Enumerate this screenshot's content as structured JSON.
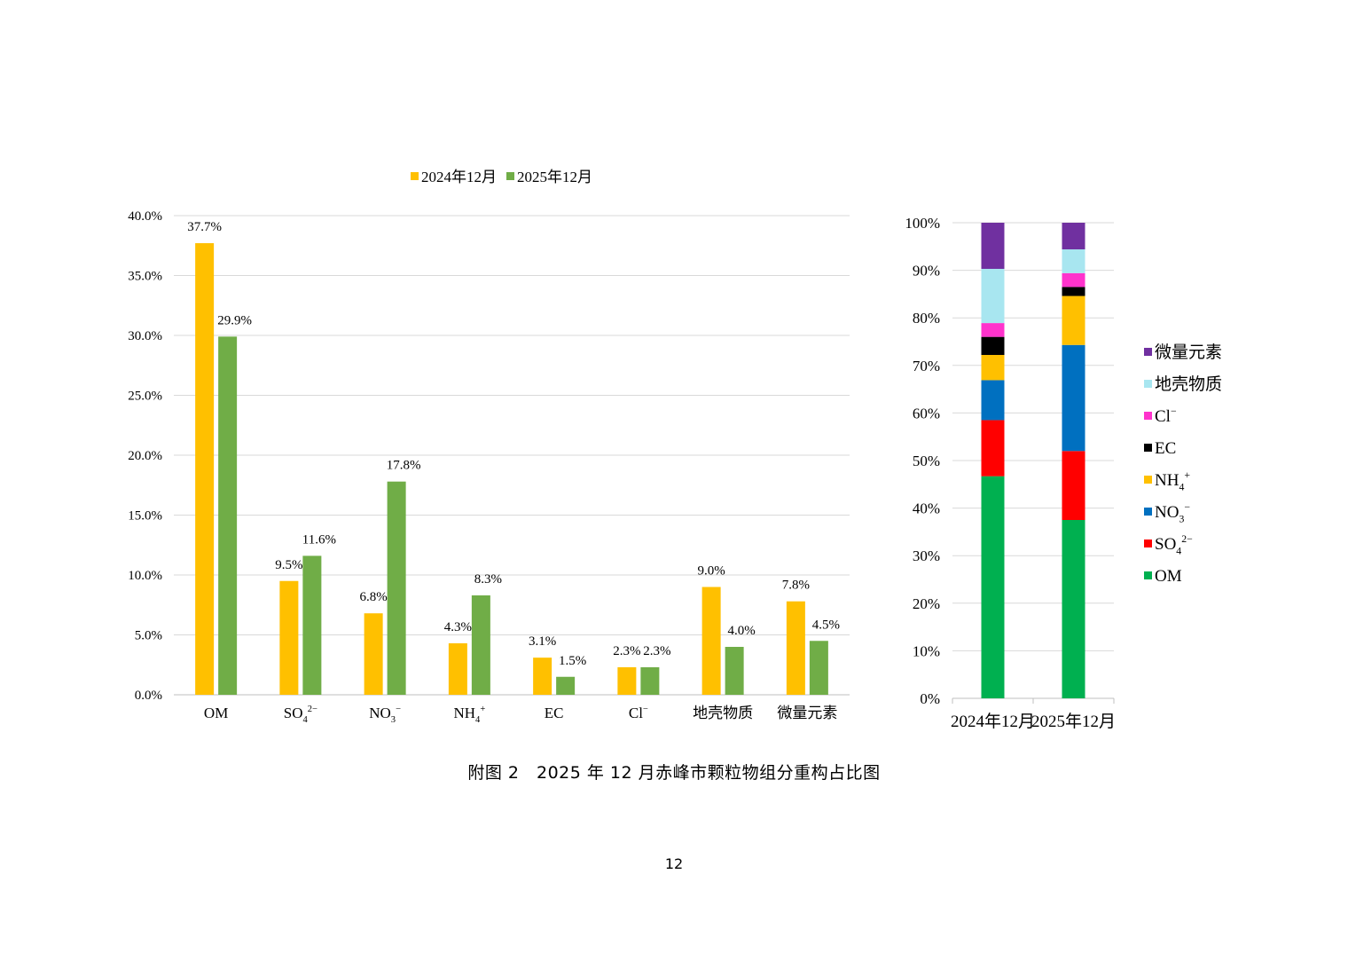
{
  "caption": "附图 2　2025 年 12 月赤峰市颗粒物组分重构占比图",
  "page_number": "12",
  "colors": {
    "series_2024": "#FFC000",
    "series_2025": "#70AD47",
    "OM": "#00B050",
    "SO4": "#FF0000",
    "NO3": "#0070C0",
    "NH4": "#FFC000",
    "EC": "#000000",
    "Cl": "#FF33CC",
    "crustal": "#A8E6F0",
    "trace": "#7030A0"
  },
  "chart_data": [
    {
      "type": "bar",
      "categories": [
        {
          "base": "OM"
        },
        {
          "base": "SO",
          "sub": "4",
          "sup": "2−"
        },
        {
          "base": "NO",
          "sub": "3",
          "sup": "−"
        },
        {
          "base": "NH",
          "sub": "4",
          "sup": "+"
        },
        {
          "base": "EC"
        },
        {
          "base": "Cl",
          "sup": "−"
        },
        {
          "base": "地壳物质"
        },
        {
          "base": "微量元素"
        }
      ],
      "series": [
        {
          "name": "2024年12月",
          "values": [
            37.7,
            9.5,
            6.8,
            4.3,
            3.1,
            2.3,
            9.0,
            7.8
          ],
          "labels": [
            "37.7%",
            "9.5%",
            "6.8%",
            "4.3%",
            "3.1%",
            "2.3%",
            "9.0%",
            "7.8%"
          ]
        },
        {
          "name": "2025年12月",
          "values": [
            29.9,
            11.6,
            17.8,
            8.3,
            1.5,
            2.3,
            4.0,
            4.5
          ],
          "labels": [
            "29.9%",
            "11.6%",
            "17.8%",
            "8.3%",
            "1.5%",
            "2.3%",
            "4.0%",
            "4.5%"
          ]
        }
      ],
      "ylim": [
        0,
        40
      ],
      "yticks": [
        "0.0%",
        "5.0%",
        "10.0%",
        "15.0%",
        "20.0%",
        "25.0%",
        "30.0%",
        "35.0%",
        "40.0%"
      ],
      "legend": "top",
      "grid": true
    },
    {
      "type": "bar",
      "stacked": true,
      "categories": [
        "2024年12月",
        "2025年12月"
      ],
      "components": [
        {
          "key": "OM",
          "label": {
            "base": "OM"
          },
          "values": [
            46.7,
            37.5
          ]
        },
        {
          "key": "SO4",
          "label": {
            "base": "SO",
            "sub": "4",
            "sup": "2−"
          },
          "values": [
            11.8,
            14.5
          ]
        },
        {
          "key": "NO3",
          "label": {
            "base": "NO",
            "sub": "3",
            "sup": "−"
          },
          "values": [
            8.4,
            22.3
          ]
        },
        {
          "key": "NH4",
          "label": {
            "base": "NH",
            "sub": "4",
            "sup": "+"
          },
          "values": [
            5.3,
            10.3
          ]
        },
        {
          "key": "EC",
          "label": {
            "base": "EC"
          },
          "values": [
            3.8,
            1.9
          ]
        },
        {
          "key": "Cl",
          "label": {
            "base": "Cl",
            "sup": "−"
          },
          "values": [
            2.9,
            2.9
          ]
        },
        {
          "key": "crustal",
          "label": {
            "base": "地壳物质"
          },
          "values": [
            11.4,
            5.0
          ]
        },
        {
          "key": "trace",
          "label": {
            "base": "微量元素"
          },
          "values": [
            9.7,
            5.6
          ]
        }
      ],
      "ylim": [
        0,
        100
      ],
      "yticks": [
        "0%",
        "10%",
        "20%",
        "30%",
        "40%",
        "50%",
        "60%",
        "70%",
        "80%",
        "90%",
        "100%"
      ],
      "legend": "right",
      "grid": true
    }
  ]
}
